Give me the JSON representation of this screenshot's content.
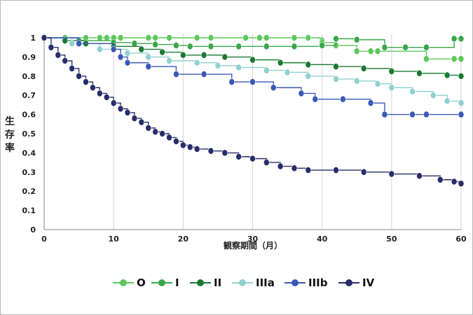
{
  "chart_data": {
    "type": "line",
    "title": "",
    "xlabel": "観察期間（月）",
    "ylabel": "生存率",
    "xlim": [
      0,
      60
    ],
    "ylim": [
      0,
      1
    ],
    "x_ticks": [
      "0",
      "10",
      "20",
      "30",
      "40",
      "50",
      "60"
    ],
    "y_ticks": [
      "0",
      "0.1",
      "0.2",
      "0.3",
      "0.4",
      "0.5",
      "0.6",
      "0.7",
      "0.8",
      "0.9",
      "1"
    ],
    "grid": "vertical",
    "legend_position": "bottom",
    "series": [
      {
        "name": "O",
        "color": "#5cc85c",
        "x": [
          0,
          3,
          6,
          8,
          9,
          10,
          11,
          15,
          16,
          18,
          22,
          24,
          29,
          31,
          32,
          36,
          38,
          40,
          40,
          42,
          45,
          47,
          48,
          55,
          59,
          60
        ],
        "y": [
          1,
          1,
          1,
          1,
          1,
          1,
          1,
          1,
          1,
          1,
          1,
          1,
          1,
          1,
          1,
          1,
          1,
          0.985,
          0.975,
          0.96,
          0.93,
          0.93,
          0.93,
          0.89,
          0.89,
          0.89
        ]
      },
      {
        "name": "I",
        "color": "#3aa64a",
        "x": [
          0,
          5,
          10,
          13,
          16,
          19,
          21,
          24,
          28,
          32,
          36,
          40,
          42,
          45,
          49,
          52,
          55,
          59,
          60
        ],
        "y": [
          1,
          0.985,
          0.975,
          0.97,
          0.965,
          0.96,
          0.955,
          0.955,
          0.955,
          0.955,
          0.955,
          0.96,
          0.995,
          0.99,
          0.95,
          0.95,
          0.95,
          0.995,
          0.995
        ]
      },
      {
        "name": "II",
        "color": "#1a7a32",
        "x": [
          0,
          3,
          6,
          10,
          14,
          17,
          20,
          23,
          26,
          30,
          34,
          38,
          42,
          46,
          50,
          54,
          58,
          60
        ],
        "y": [
          1,
          0.985,
          0.97,
          0.955,
          0.94,
          0.925,
          0.91,
          0.91,
          0.9,
          0.885,
          0.87,
          0.86,
          0.85,
          0.84,
          0.825,
          0.815,
          0.805,
          0.8
        ]
      },
      {
        "name": "IIIa",
        "color": "#90d0d0",
        "x": [
          0,
          4,
          8,
          12,
          15,
          18,
          22,
          25,
          28,
          32,
          35,
          38,
          42,
          45,
          48,
          50,
          53,
          56,
          58,
          60
        ],
        "y": [
          1,
          0.97,
          0.94,
          0.92,
          0.9,
          0.88,
          0.87,
          0.855,
          0.845,
          0.83,
          0.82,
          0.8,
          0.785,
          0.775,
          0.76,
          0.74,
          0.72,
          0.7,
          0.67,
          0.66
        ]
      },
      {
        "name": "IIIb",
        "color": "#3a58b6",
        "x": [
          0,
          5,
          10,
          11,
          12,
          15,
          19,
          23,
          27,
          30,
          33,
          37,
          39,
          43,
          47,
          49,
          53,
          55,
          60
        ],
        "y": [
          1,
          0.97,
          0.94,
          0.9,
          0.87,
          0.85,
          0.81,
          0.81,
          0.77,
          0.77,
          0.74,
          0.71,
          0.68,
          0.68,
          0.66,
          0.6,
          0.6,
          0.6,
          0.6
        ]
      },
      {
        "name": "IV",
        "color": "#262e6a",
        "x": [
          0,
          1,
          2,
          3,
          4,
          5,
          6,
          7,
          8,
          9,
          10,
          11,
          12,
          13,
          14,
          15,
          16,
          17,
          18,
          19,
          20,
          21,
          22,
          24,
          26,
          28,
          30,
          32,
          34,
          36,
          38,
          42,
          46,
          50,
          54,
          57,
          59,
          60
        ],
        "y": [
          1,
          0.95,
          0.91,
          0.88,
          0.84,
          0.8,
          0.77,
          0.74,
          0.71,
          0.69,
          0.66,
          0.63,
          0.61,
          0.58,
          0.56,
          0.53,
          0.51,
          0.5,
          0.48,
          0.46,
          0.44,
          0.43,
          0.42,
          0.41,
          0.4,
          0.38,
          0.37,
          0.35,
          0.33,
          0.32,
          0.31,
          0.31,
          0.3,
          0.29,
          0.28,
          0.26,
          0.25,
          0.24
        ]
      }
    ]
  }
}
